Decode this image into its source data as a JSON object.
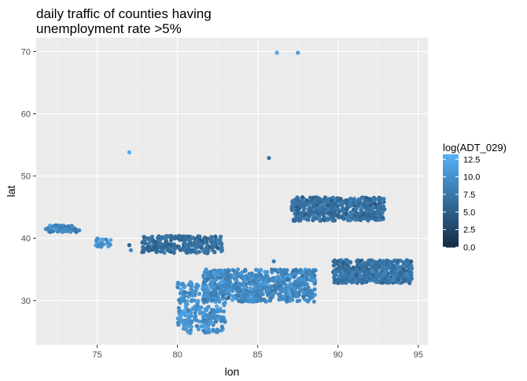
{
  "chart_data": {
    "type": "scatter",
    "title_lines": [
      "daily traffic of counties having",
      "unemployment rate >5%"
    ],
    "xlabel": "lon",
    "ylabel": "lat",
    "xlim": [
      71.2,
      95.6
    ],
    "ylim": [
      22.9,
      72.2
    ],
    "x_ticks": [
      75,
      80,
      85,
      90,
      95
    ],
    "y_ticks": [
      30,
      40,
      50,
      60,
      70
    ],
    "x_minor": [
      72.5,
      77.5,
      82.5,
      87.5,
      92.5
    ],
    "y_minor": [
      25,
      35,
      45,
      55,
      65
    ],
    "grid": true,
    "legend": {
      "title": "log(ADT_029)",
      "ticks": [
        0.0,
        2.5,
        5.0,
        7.5,
        10.0,
        12.5
      ],
      "tick_labels": [
        "0.0",
        "2.5",
        "5.0",
        "7.5",
        "10.0",
        "12.5"
      ],
      "range": [
        0,
        13.2
      ],
      "low_color": "#132B43",
      "high_color": "#56B1F7",
      "placement": "right"
    },
    "clusters": [
      {
        "name": "west-strip",
        "lon": [
          71.8,
          73.9
        ],
        "lat": [
          41.0,
          42.1
        ],
        "n": 70,
        "value_mean": 9.0
      },
      {
        "name": "small-75",
        "lon": [
          74.9,
          75.9
        ],
        "lat": [
          38.5,
          40.0
        ],
        "n": 25,
        "value_mean": 10.5
      },
      {
        "name": "band-78-82",
        "lon": [
          77.8,
          82.8
        ],
        "lat": [
          37.6,
          40.4
        ],
        "n": 260,
        "value_mean": 6.5
      },
      {
        "name": "south-blob",
        "lon": [
          80.0,
          83.0
        ],
        "lat": [
          24.8,
          33.0
        ],
        "n": 260,
        "value_mean": 10.2
      },
      {
        "name": "central-blob",
        "lon": [
          81.6,
          88.6
        ],
        "lat": [
          29.8,
          35.0
        ],
        "n": 650,
        "value_mean": 9.3
      },
      {
        "name": "north-east-blob",
        "lon": [
          87.1,
          92.9
        ],
        "lat": [
          42.8,
          46.6
        ],
        "n": 520,
        "value_mean": 6.8
      },
      {
        "name": "east-blob",
        "lon": [
          89.7,
          94.6
        ],
        "lat": [
          32.8,
          36.5
        ],
        "n": 520,
        "value_mean": 7.2
      }
    ],
    "outliers": [
      {
        "lon": 86.2,
        "lat": 69.8,
        "value": 12.0
      },
      {
        "lon": 87.5,
        "lat": 69.8,
        "value": 11.0
      },
      {
        "lon": 77.0,
        "lat": 53.8,
        "value": 12.5
      },
      {
        "lon": 85.7,
        "lat": 52.9,
        "value": 7.0
      },
      {
        "lon": 86.0,
        "lat": 36.3,
        "value": 8.0
      },
      {
        "lon": 77.0,
        "lat": 38.9,
        "value": 5.0
      },
      {
        "lon": 77.1,
        "lat": 38.1,
        "value": 9.0
      },
      {
        "lon": 80.8,
        "lat": 24.8,
        "value": 11.0
      }
    ]
  }
}
